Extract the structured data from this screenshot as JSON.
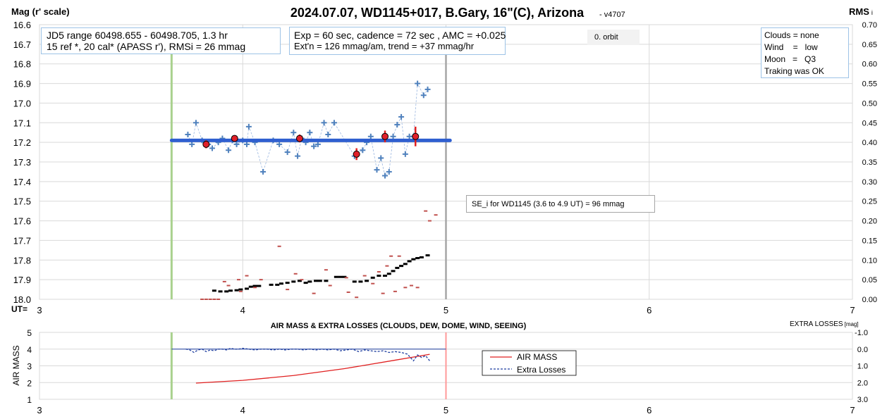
{
  "top": {
    "title": "2024.07.07, WD1145+017, B.Gary, 16\"(C), Arizona",
    "version": "- v4707",
    "left_axis_label": "Mag (r' scale)",
    "right_axis_label": "RMS",
    "right_axis_label_suffix": "i",
    "ut_label": "UT=",
    "y_ticks": [
      "16.6",
      "16.7",
      "16.8",
      "16.9",
      "17.0",
      "17.1",
      "17.2",
      "17.3",
      "17.4",
      "17.5",
      "17.6",
      "17.7",
      "17.8",
      "17.9",
      "18.0"
    ],
    "rms_ticks": [
      "0.70",
      "0.65",
      "0.60",
      "0.55",
      "0.50",
      "0.45",
      "0.40",
      "0.35",
      "0.30",
      "0.25",
      "0.20",
      "0.15",
      "0.10",
      "0.05",
      "0.00"
    ],
    "x_ticks": [
      "3",
      "4",
      "5",
      "6",
      "7"
    ],
    "info_box_1": [
      "JD5 range 60498.655 - 60498.705, 1.3 hr",
      "15 ref *, 20 cal*  (APASS r'), RMSi = 26 mmag"
    ],
    "info_box_2": [
      "Exp = 60 sec, cadence = 72 sec , AMC = +0.025",
      "Ext'n = 126 mmag/am, trend = +37 mmag/hr"
    ],
    "orbit_label": "0. orbit",
    "conditions": [
      "Clouds = none",
      "Wind    =   low",
      "Moon   =   Q3",
      "Traking was OK"
    ],
    "se_label": "SE_i for WD1145 (3.6 to 4.9 UT) = 96 mmag"
  },
  "bottom": {
    "title": "AIR MASS & EXTRA LOSSES (CLOUDS, DEW, DOME, WIND, SEEING)",
    "right_label": "EXTRA LOSSES",
    "right_label_unit": "[mag]",
    "y_label": "AIR MASS",
    "y_ticks": [
      "5",
      "4",
      "3",
      "2",
      "1"
    ],
    "right_ticks": [
      "-1.0",
      "0.0",
      "1.0",
      "2.0",
      "3.0"
    ],
    "x_ticks": [
      "3",
      "4",
      "5",
      "6",
      "7"
    ],
    "legend": [
      "AIR MASS",
      "Extra Losses"
    ]
  },
  "colors": {
    "plus": "#4f81bd",
    "fit_line": "#2f5fd0",
    "avg_fill": "#e0202a",
    "rms_dark": "#000000",
    "rms_orange": "#c0504d",
    "green_line": "#a9d18e",
    "gray_line": "#a6a6a6",
    "red_line": "#ff9999",
    "airmass": "#e02020",
    "extra": "#1f3fa0"
  },
  "chart_data": [
    {
      "type": "scatter",
      "xlabel": "UT=",
      "ylabel": "Mag (r' scale)",
      "y2label": "RMS i",
      "xlim": [
        3,
        7
      ],
      "ylim": [
        18.0,
        16.6
      ],
      "y2lim": [
        0.0,
        0.7
      ],
      "markers": {
        "start_ut": 3.65,
        "end_ut": 5.0
      },
      "series": [
        {
          "kind": "individual",
          "points": [
            [
              3.73,
              17.16
            ],
            [
              3.75,
              17.21
            ],
            [
              3.77,
              17.1
            ],
            [
              3.8,
              17.19
            ],
            [
              3.83,
              17.21
            ],
            [
              3.85,
              17.23
            ],
            [
              3.88,
              17.2
            ],
            [
              3.9,
              17.18
            ],
            [
              3.93,
              17.24
            ],
            [
              3.95,
              17.19
            ],
            [
              3.97,
              17.21
            ],
            [
              4.0,
              17.19
            ],
            [
              4.02,
              17.21
            ],
            [
              4.03,
              17.12
            ],
            [
              4.06,
              17.2
            ],
            [
              4.1,
              17.35
            ],
            [
              4.15,
              17.19
            ],
            [
              4.18,
              17.21
            ],
            [
              4.22,
              17.25
            ],
            [
              4.25,
              17.15
            ],
            [
              4.27,
              17.27
            ],
            [
              4.29,
              17.18
            ],
            [
              4.31,
              17.2
            ],
            [
              4.33,
              17.15
            ],
            [
              4.35,
              17.22
            ],
            [
              4.37,
              17.21
            ],
            [
              4.4,
              17.1
            ],
            [
              4.42,
              17.16
            ],
            [
              4.45,
              17.1
            ],
            [
              4.55,
              17.27
            ],
            [
              4.59,
              17.24
            ],
            [
              4.61,
              17.2
            ],
            [
              4.63,
              17.17
            ],
            [
              4.66,
              17.34
            ],
            [
              4.68,
              17.28
            ],
            [
              4.7,
              17.37
            ],
            [
              4.72,
              17.35
            ],
            [
              4.74,
              17.17
            ],
            [
              4.76,
              17.11
            ],
            [
              4.78,
              17.07
            ],
            [
              4.8,
              17.26
            ],
            [
              4.82,
              17.17
            ],
            [
              4.84,
              17.17
            ],
            [
              4.86,
              16.9
            ],
            [
              4.89,
              16.96
            ],
            [
              4.91,
              16.93
            ]
          ]
        },
        {
          "kind": "fit",
          "from_ut": 3.65,
          "to_ut": 5.02,
          "mag": 17.19
        },
        {
          "kind": "average",
          "points": [
            {
              "x": 3.82,
              "y": 17.21,
              "err": 0.02
            },
            {
              "x": 3.96,
              "y": 17.18,
              "err": 0.01
            },
            {
              "x": 4.28,
              "y": 17.18,
              "err": 0.02
            },
            {
              "x": 4.56,
              "y": 17.26,
              "err": 0.03
            },
            {
              "x": 4.7,
              "y": 17.17,
              "err": 0.03
            },
            {
              "x": 4.85,
              "y": 17.17,
              "err": 0.05
            }
          ]
        },
        {
          "kind": "rms_running",
          "points": [
            [
              3.86,
              0.022
            ],
            [
              3.89,
              0.02
            ],
            [
              3.92,
              0.02
            ],
            [
              3.94,
              0.022
            ],
            [
              3.97,
              0.023
            ],
            [
              3.99,
              0.025
            ],
            [
              4.02,
              0.027
            ],
            [
              4.04,
              0.032
            ],
            [
              4.06,
              0.034
            ],
            [
              4.08,
              0.034
            ],
            [
              4.14,
              0.037
            ],
            [
              4.17,
              0.037
            ],
            [
              4.19,
              0.04
            ],
            [
              4.22,
              0.042
            ],
            [
              4.25,
              0.045
            ],
            [
              4.28,
              0.047
            ],
            [
              4.31,
              0.042
            ],
            [
              4.33,
              0.045
            ],
            [
              4.36,
              0.047
            ],
            [
              4.38,
              0.047
            ],
            [
              4.41,
              0.047
            ],
            [
              4.46,
              0.057
            ],
            [
              4.48,
              0.057
            ],
            [
              4.5,
              0.057
            ],
            [
              4.55,
              0.045
            ],
            [
              4.58,
              0.045
            ],
            [
              4.61,
              0.047
            ],
            [
              4.64,
              0.055
            ],
            [
              4.67,
              0.06
            ],
            [
              4.7,
              0.06
            ],
            [
              4.72,
              0.065
            ],
            [
              4.74,
              0.072
            ],
            [
              4.76,
              0.08
            ],
            [
              4.78,
              0.085
            ],
            [
              4.8,
              0.09
            ],
            [
              4.82,
              0.097
            ],
            [
              4.84,
              0.102
            ],
            [
              4.86,
              0.105
            ],
            [
              4.88,
              0.107
            ],
            [
              4.91,
              0.112
            ]
          ]
        },
        {
          "kind": "rms_point",
          "points": [
            [
              3.8,
              0.0
            ],
            [
              3.82,
              0.0
            ],
            [
              3.84,
              0.0
            ],
            [
              3.86,
              0.0
            ],
            [
              3.88,
              0.0
            ],
            [
              3.91,
              0.045
            ],
            [
              3.93,
              0.035
            ],
            [
              3.98,
              0.05
            ],
            [
              3.99,
              0.02
            ],
            [
              4.02,
              0.06
            ],
            [
              4.06,
              0.03
            ],
            [
              4.09,
              0.05
            ],
            [
              4.18,
              0.135
            ],
            [
              4.22,
              0.025
            ],
            [
              4.26,
              0.065
            ],
            [
              4.29,
              0.05
            ],
            [
              4.35,
              0.015
            ],
            [
              4.41,
              0.075
            ],
            [
              4.43,
              0.035
            ],
            [
              4.51,
              0.055
            ],
            [
              4.52,
              0.018
            ],
            [
              4.56,
              0.005
            ],
            [
              4.6,
              0.06
            ],
            [
              4.64,
              0.04
            ],
            [
              4.67,
              0.07
            ],
            [
              4.69,
              0.015
            ],
            [
              4.71,
              0.085
            ],
            [
              4.73,
              0.11
            ],
            [
              4.75,
              0.02
            ],
            [
              4.77,
              0.11
            ],
            [
              4.8,
              0.03
            ],
            [
              4.83,
              0.035
            ],
            [
              4.86,
              0.03
            ],
            [
              4.9,
              0.225
            ],
            [
              4.92,
              0.2
            ],
            [
              4.95,
              0.215
            ]
          ]
        }
      ]
    },
    {
      "type": "line",
      "title": "AIR MASS & EXTRA LOSSES (CLOUDS, DEW, DOME, WIND, SEEING)",
      "xlim": [
        3,
        7
      ],
      "ylim": [
        1,
        5
      ],
      "y2lim": [
        -1.0,
        3.0
      ],
      "series": [
        {
          "name": "AIR MASS",
          "x": [
            3.77,
            4.0,
            4.25,
            4.5,
            4.75,
            4.92
          ],
          "y": [
            1.97,
            2.13,
            2.42,
            2.83,
            3.34,
            3.69
          ]
        },
        {
          "name": "Extra Losses",
          "x": [
            3.72,
            3.74,
            3.76,
            3.78,
            3.8,
            3.82,
            3.84,
            3.86,
            3.88,
            3.9,
            3.92,
            3.94,
            3.96,
            3.98,
            4.0,
            4.03,
            4.06,
            4.09,
            4.12,
            4.15,
            4.18,
            4.21,
            4.24,
            4.27,
            4.3,
            4.33,
            4.36,
            4.39,
            4.42,
            4.45,
            4.48,
            4.51,
            4.54,
            4.57,
            4.6,
            4.63,
            4.66,
            4.69,
            4.72,
            4.75,
            4.78,
            4.81,
            4.84,
            4.86,
            4.88,
            4.9,
            4.92
          ],
          "y": [
            0.0,
            0.05,
            0.2,
            0.05,
            0.0,
            0.15,
            0.05,
            0.1,
            0.0,
            0.0,
            0.05,
            -0.05,
            0.0,
            0.0,
            -0.05,
            0.0,
            0.05,
            0.0,
            0.0,
            0.05,
            0.0,
            0.05,
            0.0,
            0.0,
            0.05,
            0.0,
            0.05,
            0.0,
            0.05,
            0.0,
            0.1,
            0.05,
            0.0,
            0.15,
            0.05,
            0.1,
            0.15,
            0.1,
            0.2,
            0.15,
            0.2,
            0.3,
            0.7,
            0.35,
            0.5,
            0.4,
            0.7
          ]
        }
      ],
      "markers": {
        "start_ut": 3.65,
        "end_ut": 5.0
      }
    }
  ]
}
